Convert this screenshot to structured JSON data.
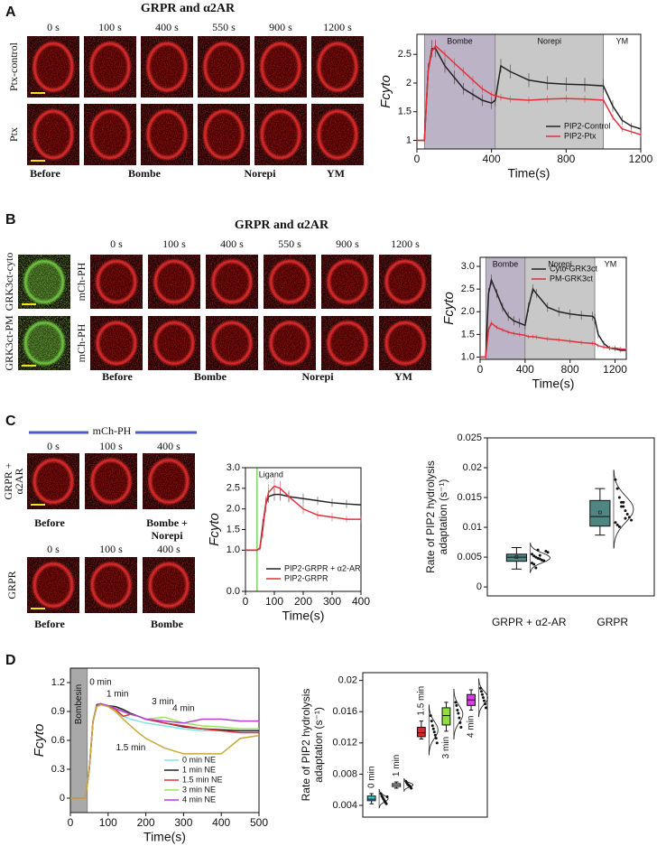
{
  "panels": {
    "A": {
      "letter": "A",
      "title": "GRPR and α2AR",
      "times": [
        "0 s",
        "100 s",
        "400 s",
        "550 s",
        "900 s",
        "1200 s"
      ],
      "rows": [
        "Ptx-control",
        "Ptx"
      ],
      "conditions": [
        "Before",
        "Bombe",
        "Norepi",
        "YM"
      ]
    },
    "B": {
      "letter": "B",
      "title": "GRPR and α2AR",
      "image_rows": [
        "GRK3ct-cyto",
        "GRK3ct-PM"
      ],
      "probe_rows": [
        "mCh-PH",
        "mCh-PH"
      ],
      "times": [
        "0 s",
        "100 s",
        "400 s",
        "550 s",
        "900 s",
        "1200 s"
      ],
      "conditions": [
        "Before",
        "Bombe",
        "Norepi",
        "YM"
      ]
    },
    "C": {
      "letter": "C",
      "probe": "mCh-PH",
      "rows": [
        {
          "label": [
            "GRPR +",
            "α2AR"
          ],
          "times": [
            "0 s",
            "100 s",
            "400 s"
          ],
          "conditions": [
            "Before",
            "Bombe +",
            "Norepi"
          ]
        },
        {
          "label": [
            "GRPR"
          ],
          "times": [
            "0 s",
            "100 s",
            "400 s"
          ],
          "conditions": [
            "Before",
            "Bombe"
          ]
        }
      ]
    },
    "D": {
      "letter": "D"
    }
  },
  "chart_data": [
    {
      "type": "line",
      "xlabel": "Time(s)",
      "ylabel": "Fcyto",
      "legend": "lower right",
      "xlim": [
        0,
        1200
      ],
      "xticks": [
        0,
        400,
        800,
        1200
      ],
      "ylim": [
        0.85,
        2.85
      ],
      "yticks": [
        1,
        1.5,
        2,
        2.5
      ],
      "regions": [
        {
          "label": "Bombe",
          "start": 40,
          "end": 420,
          "color": "#bdb3c7"
        },
        {
          "label": "Norepi",
          "start": 420,
          "end": 1000,
          "color": "#c8c8c8"
        },
        {
          "label": "YM",
          "start": 1000,
          "end": 1200,
          "color": "#ffffff"
        }
      ],
      "x": [
        0,
        40,
        60,
        80,
        100,
        150,
        200,
        250,
        300,
        350,
        400,
        420,
        450,
        500,
        600,
        700,
        800,
        900,
        1000,
        1050,
        1100,
        1150,
        1200
      ],
      "series": [
        {
          "name": "PIP2-Control",
          "color": "#222222",
          "values": [
            1,
            1,
            2.2,
            2.6,
            2.6,
            2.3,
            2.1,
            1.9,
            1.8,
            1.7,
            1.65,
            1.7,
            2.3,
            2.2,
            2.05,
            2.0,
            1.98,
            1.97,
            1.95,
            1.6,
            1.35,
            1.25,
            1.2
          ],
          "errors": [
            0.02,
            0.02,
            0.15,
            0.15,
            0.15,
            0.12,
            0.12,
            0.1,
            0.1,
            0.1,
            0.1,
            0.1,
            0.12,
            0.12,
            0.12,
            0.12,
            0.12,
            0.12,
            0.12,
            0.1,
            0.08,
            0.06,
            0.05
          ]
        },
        {
          "name": "PIP2-Ptx",
          "color": "#e0303a",
          "values": [
            1,
            1,
            2.2,
            2.55,
            2.65,
            2.5,
            2.35,
            2.2,
            2.05,
            1.9,
            1.8,
            1.78,
            1.75,
            1.72,
            1.7,
            1.72,
            1.73,
            1.72,
            1.7,
            1.4,
            1.2,
            1.15,
            1.1
          ],
          "errors": [
            0.02,
            0.02,
            0.1,
            0.1,
            0.1,
            0.08,
            0.08,
            0.08,
            0.07,
            0.07,
            0.06,
            0.06,
            0.06,
            0.06,
            0.06,
            0.06,
            0.06,
            0.06,
            0.06,
            0.05,
            0.05,
            0.05,
            0.05
          ]
        }
      ]
    },
    {
      "type": "line",
      "xlabel": "Time(s)",
      "ylabel": "Fcyto",
      "legend": "upper right",
      "xlim": [
        0,
        1300
      ],
      "xticks": [
        0,
        400,
        800,
        1200
      ],
      "ylim": [
        0.95,
        3.2
      ],
      "yticks": [
        {
          "value": 1,
          "label": "1.0"
        },
        1.5,
        {
          "value": 2,
          "label": "2.0"
        },
        2.5,
        {
          "value": 3,
          "label": "3.0"
        }
      ],
      "regions": [
        {
          "label": "Bombe",
          "start": 50,
          "end": 400,
          "color": "#bdb3c7"
        },
        {
          "label": "Norepi",
          "start": 400,
          "end": 1020,
          "color": "#c8c8c8"
        },
        {
          "label": "YM",
          "start": 1020,
          "end": 1300,
          "color": "#ffffff"
        }
      ],
      "x": [
        0,
        50,
        75,
        100,
        150,
        200,
        250,
        300,
        350,
        400,
        430,
        470,
        500,
        600,
        700,
        800,
        900,
        1000,
        1020,
        1050,
        1100,
        1150,
        1200,
        1250,
        1300
      ],
      "series": [
        {
          "name": "Cyto-GRK3ct",
          "color": "#222222",
          "values": [
            1,
            1,
            2.4,
            2.7,
            2.4,
            2.1,
            1.9,
            1.8,
            1.75,
            1.7,
            2.1,
            2.5,
            2.4,
            2.1,
            2.0,
            1.95,
            1.92,
            1.9,
            1.85,
            1.5,
            1.3,
            1.2,
            1.18,
            1.15,
            1.15
          ],
          "errors": [
            0.02,
            0.02,
            0.12,
            0.12,
            0.1,
            0.1,
            0.1,
            0.1,
            0.1,
            0.1,
            0.1,
            0.1,
            0.1,
            0.1,
            0.1,
            0.1,
            0.1,
            0.1,
            0.1,
            0.08,
            0.06,
            0.05,
            0.05,
            0.05,
            0.05
          ]
        },
        {
          "name": "PM-GRK3ct",
          "color": "#e0303a",
          "values": [
            1,
            1,
            1.6,
            1.75,
            1.65,
            1.6,
            1.55,
            1.52,
            1.5,
            1.48,
            1.45,
            1.45,
            1.44,
            1.4,
            1.38,
            1.35,
            1.32,
            1.3,
            1.3,
            1.25,
            1.22,
            1.2,
            1.2,
            1.18,
            1.17
          ],
          "errors": [
            0.02,
            0.02,
            0.06,
            0.06,
            0.05,
            0.05,
            0.05,
            0.05,
            0.05,
            0.05,
            0.05,
            0.05,
            0.05,
            0.05,
            0.05,
            0.05,
            0.05,
            0.05,
            0.05,
            0.05,
            0.05,
            0.05,
            0.05,
            0.05,
            0.05
          ]
        }
      ]
    },
    {
      "type": "line",
      "xlabel": "Time(s)",
      "ylabel": "Fcyto",
      "legend": "lower right",
      "xlim": [
        0,
        400
      ],
      "xticks": [
        0,
        100,
        200,
        300,
        400
      ],
      "ylim": [
        0,
        3
      ],
      "yticks": [
        {
          "value": 0,
          "label": "0.0"
        },
        {
          "value": 1,
          "label": "1.0"
        },
        1.5,
        {
          "value": 2,
          "label": "2.0"
        },
        2.5,
        {
          "value": 3,
          "label": "3.0"
        }
      ],
      "vlines": [
        {
          "x": 40,
          "color": "#7fd36b",
          "label": "Ligand"
        }
      ],
      "x": [
        0,
        40,
        50,
        60,
        70,
        80,
        100,
        120,
        150,
        200,
        250,
        300,
        350,
        400
      ],
      "series": [
        {
          "name": "PIP2-GRPR + α2-AR",
          "color": "#222222",
          "values": [
            1,
            1,
            1.05,
            1.6,
            2.1,
            2.3,
            2.35,
            2.35,
            2.3,
            2.25,
            2.2,
            2.15,
            2.12,
            2.1
          ],
          "errors": [
            0.02,
            0.02,
            0.05,
            0.15,
            0.15,
            0.15,
            0.15,
            0.15,
            0.12,
            0.12,
            0.1,
            0.1,
            0.1,
            0.1
          ]
        },
        {
          "name": "PIP2-GRPR",
          "color": "#e0303a",
          "values": [
            1,
            1,
            1.05,
            1.5,
            2.1,
            2.4,
            2.55,
            2.5,
            2.3,
            2.0,
            1.85,
            1.8,
            1.75,
            1.75
          ],
          "errors": [
            0.02,
            0.02,
            0.05,
            0.2,
            0.2,
            0.2,
            0.2,
            0.18,
            0.15,
            0.12,
            0.1,
            0.1,
            0.08,
            0.08
          ]
        }
      ]
    },
    {
      "type": "box",
      "ylabel": [
        "Rate of PIP2 hydrolysis",
        "adaptation (s⁻¹)"
      ],
      "ylim": [
        -0.0015,
        0.025
      ],
      "yticks": [
        0,
        0.005,
        0.01,
        0.015,
        0.02,
        0.025
      ],
      "categories": [
        "GRPR + α2-AR",
        "GRPR"
      ],
      "colors": [
        "#4f8682",
        "#4f8682"
      ],
      "boxes": [
        {
          "min": 0.003,
          "q1": 0.0043,
          "median": 0.005,
          "q3": 0.0055,
          "max": 0.0066,
          "mean": 0.005
        },
        {
          "min": 0.0087,
          "q1": 0.0102,
          "median": 0.0118,
          "q3": 0.0145,
          "max": 0.0165,
          "mean": 0.0125
        }
      ],
      "points": [
        [
          0.0055,
          0.0052,
          0.005,
          0.0048,
          0.0047,
          0.0045,
          0.0044,
          0.006,
          0.0058,
          0.004,
          0.0038,
          0.0032,
          0.0062,
          0.0053
        ],
        [
          0.018,
          0.0165,
          0.015,
          0.0142,
          0.0135,
          0.0128,
          0.0122,
          0.0117,
          0.0112,
          0.0108,
          0.0104,
          0.0101,
          0.0135,
          0.0142,
          0.0115
        ]
      ]
    },
    {
      "type": "line",
      "xlabel": "Time(s)",
      "ylabel": "Fcyto",
      "legend": "lower right",
      "xlim": [
        0,
        500
      ],
      "xticks": [
        0,
        100,
        200,
        300,
        400,
        500
      ],
      "ylim": [
        -0.15,
        1.35
      ],
      "yticks": [
        0,
        0.3,
        0.6,
        0.9,
        1.2
      ],
      "regions": [
        {
          "label": "Bombesin",
          "start": 0,
          "end": 45,
          "color": "#a9a9a9",
          "vertical": true
        }
      ],
      "annotations": [
        {
          "text": "0 min",
          "x": 80,
          "y": 1.2
        },
        {
          "text": "1 min",
          "x": 125,
          "y": 1.08
        },
        {
          "text": "1.5 min",
          "x": 160,
          "y": 0.52
        },
        {
          "text": "3 min",
          "x": 245,
          "y": 1.0
        },
        {
          "text": "4 min",
          "x": 300,
          "y": 0.93
        }
      ],
      "x": [
        0,
        40,
        50,
        60,
        70,
        80,
        100,
        120,
        140,
        160,
        180,
        200,
        250,
        300,
        350,
        400,
        450,
        500
      ],
      "series": [
        {
          "name": "0 min NE",
          "color": "#7fe3e8",
          "values": [
            0,
            0,
            0.3,
            0.8,
            0.97,
            0.98,
            0.95,
            0.9,
            0.85,
            0.82,
            0.8,
            0.78,
            0.75,
            0.72,
            0.7,
            0.7,
            0.7,
            0.7
          ]
        },
        {
          "name": "1 min NE",
          "color": "#222222",
          "values": [
            0,
            0,
            0.3,
            0.8,
            0.97,
            0.98,
            0.96,
            0.95,
            0.92,
            0.88,
            0.85,
            0.82,
            0.78,
            0.74,
            0.72,
            0.71,
            0.7,
            0.7
          ]
        },
        {
          "name": "1.5 min NE",
          "color": "#e0303a",
          "values": [
            0,
            0,
            0.3,
            0.8,
            0.96,
            0.97,
            0.96,
            0.92,
            0.85,
            0.87,
            0.85,
            0.82,
            0.78,
            0.75,
            0.72,
            0.7,
            0.68,
            0.68
          ]
        },
        {
          "name": "3 min NE",
          "color": "#9be35a",
          "values": [
            0,
            0,
            0.3,
            0.8,
            0.96,
            0.98,
            0.96,
            0.93,
            0.9,
            0.87,
            0.85,
            0.82,
            0.84,
            0.78,
            0.75,
            0.74,
            0.72,
            0.72
          ]
        },
        {
          "name": "4 min NE",
          "color": "#b23fd8",
          "values": [
            0,
            0,
            0.3,
            0.8,
            0.96,
            0.98,
            0.96,
            0.93,
            0.9,
            0.87,
            0.85,
            0.82,
            0.8,
            0.78,
            0.82,
            0.82,
            0.8,
            0.8
          ]
        },
        {
          "color": "#c9a93a",
          "values": [
            0,
            0,
            0.3,
            0.8,
            0.95,
            0.97,
            0.95,
            0.9,
            0.82,
            0.75,
            0.68,
            0.62,
            0.52,
            0.46,
            0.46,
            0.46,
            0.62,
            0.65
          ]
        }
      ]
    },
    {
      "type": "box",
      "ylabel": [
        "Rate of PIP2 hydrolysis",
        "adaptation (s⁻¹)"
      ],
      "ylim": [
        0.0025,
        0.021
      ],
      "yticks": [
        0.004,
        0.008,
        0.012,
        0.016,
        0.02
      ],
      "categories": [
        "0 min",
        "1 min",
        "1.5 min",
        "3 min",
        "4 min"
      ],
      "colors": [
        "#3fc6d6",
        "#ffffff",
        "#d8282e",
        "#8fe03c",
        "#d83fe0"
      ],
      "boxes": [
        {
          "min": 0.0042,
          "q1": 0.0046,
          "median": 0.0048,
          "q3": 0.0052,
          "max": 0.0055
        },
        {
          "min": 0.0062,
          "q1": 0.0064,
          "median": 0.0066,
          "q3": 0.0068,
          "max": 0.007
        },
        {
          "min": 0.0125,
          "q1": 0.0128,
          "median": 0.0133,
          "q3": 0.014,
          "max": 0.0148
        },
        {
          "min": 0.0135,
          "q1": 0.0143,
          "median": 0.0155,
          "q3": 0.0165,
          "max": 0.0172
        },
        {
          "min": 0.0162,
          "q1": 0.0168,
          "median": 0.0175,
          "q3": 0.0182,
          "max": 0.0188
        }
      ],
      "points": [
        [
          0.0055,
          0.0052,
          0.005,
          0.0048,
          0.0046,
          0.0044,
          0.0042,
          0.0051
        ],
        [
          0.0071,
          0.0069,
          0.0067,
          0.0066,
          0.0065,
          0.0064,
          0.0062
        ],
        [
          0.0155,
          0.0148,
          0.0142,
          0.0138,
          0.0134,
          0.013,
          0.0126,
          0.012
        ],
        [
          0.0172,
          0.0168,
          0.0162,
          0.0158,
          0.0152,
          0.0146,
          0.014
        ],
        [
          0.019,
          0.0186,
          0.0182,
          0.0178,
          0.0174,
          0.017,
          0.0165
        ]
      ]
    }
  ]
}
